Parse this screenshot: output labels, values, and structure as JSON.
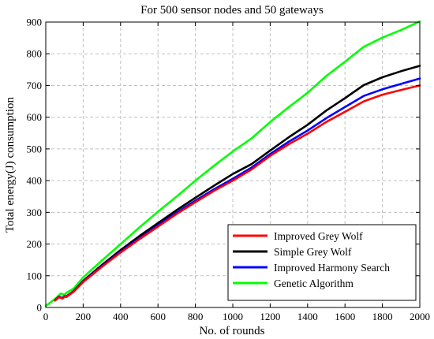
{
  "chart_data": {
    "type": "line",
    "title": "For 500 sensor nodes and 50 gateways",
    "xlabel": "No. of rounds",
    "ylabel": "Total energy(J) consumption",
    "xlim": [
      0,
      2000
    ],
    "ylim": [
      0,
      900
    ],
    "xticks": [
      0,
      200,
      400,
      600,
      800,
      1000,
      1200,
      1400,
      1600,
      1800,
      2000
    ],
    "yticks": [
      0,
      100,
      200,
      300,
      400,
      500,
      600,
      700,
      800,
      900
    ],
    "grid": true,
    "grid_style": "dashed",
    "legend_position": "bottom-right",
    "series": [
      {
        "name": "Improved Grey Wolf",
        "color": "#ff0000",
        "points": [
          [
            50,
            22
          ],
          [
            70,
            32
          ],
          [
            90,
            28
          ],
          [
            100,
            34
          ],
          [
            110,
            33
          ],
          [
            150,
            50
          ],
          [
            200,
            80
          ],
          [
            300,
            128
          ],
          [
            400,
            173
          ],
          [
            500,
            215
          ],
          [
            600,
            255
          ],
          [
            700,
            295
          ],
          [
            800,
            332
          ],
          [
            900,
            368
          ],
          [
            1000,
            400
          ],
          [
            1100,
            435
          ],
          [
            1200,
            478
          ],
          [
            1300,
            515
          ],
          [
            1400,
            548
          ],
          [
            1500,
            585
          ],
          [
            1600,
            617
          ],
          [
            1700,
            650
          ],
          [
            1800,
            671
          ],
          [
            1900,
            686
          ],
          [
            2000,
            700
          ]
        ]
      },
      {
        "name": "Simple Grey Wolf",
        "color": "#000000",
        "points": [
          [
            50,
            23
          ],
          [
            70,
            34
          ],
          [
            90,
            30
          ],
          [
            100,
            36
          ],
          [
            110,
            35
          ],
          [
            150,
            52
          ],
          [
            200,
            84
          ],
          [
            300,
            134
          ],
          [
            400,
            181
          ],
          [
            500,
            225
          ],
          [
            600,
            266
          ],
          [
            700,
            307
          ],
          [
            800,
            346
          ],
          [
            900,
            384
          ],
          [
            1000,
            421
          ],
          [
            1100,
            452
          ],
          [
            1200,
            495
          ],
          [
            1300,
            537
          ],
          [
            1400,
            576
          ],
          [
            1500,
            621
          ],
          [
            1600,
            660
          ],
          [
            1700,
            701
          ],
          [
            1800,
            726
          ],
          [
            1900,
            745
          ],
          [
            2000,
            762
          ]
        ]
      },
      {
        "name": "Improved Harmony Search",
        "color": "#0000ff",
        "points": [
          [
            50,
            22
          ],
          [
            70,
            33
          ],
          [
            90,
            29
          ],
          [
            100,
            35
          ],
          [
            110,
            34
          ],
          [
            150,
            51
          ],
          [
            200,
            82
          ],
          [
            300,
            130
          ],
          [
            400,
            176
          ],
          [
            500,
            218
          ],
          [
            600,
            259
          ],
          [
            700,
            299
          ],
          [
            800,
            337
          ],
          [
            900,
            373
          ],
          [
            1000,
            406
          ],
          [
            1100,
            441
          ],
          [
            1200,
            484
          ],
          [
            1300,
            523
          ],
          [
            1400,
            558
          ],
          [
            1500,
            597
          ],
          [
            1600,
            632
          ],
          [
            1700,
            667
          ],
          [
            1800,
            688
          ],
          [
            1900,
            705
          ],
          [
            2000,
            722
          ]
        ]
      },
      {
        "name": "Genetic Algorithm",
        "color": "#00ff00",
        "points": [
          [
            0,
            5
          ],
          [
            30,
            18
          ],
          [
            60,
            32
          ],
          [
            80,
            44
          ],
          [
            100,
            40
          ],
          [
            110,
            46
          ],
          [
            150,
            60
          ],
          [
            200,
            95
          ],
          [
            300,
            148
          ],
          [
            400,
            200
          ],
          [
            500,
            252
          ],
          [
            600,
            302
          ],
          [
            700,
            350
          ],
          [
            800,
            400
          ],
          [
            900,
            447
          ],
          [
            1000,
            492
          ],
          [
            1100,
            533
          ],
          [
            1200,
            585
          ],
          [
            1300,
            632
          ],
          [
            1400,
            677
          ],
          [
            1500,
            730
          ],
          [
            1600,
            775
          ],
          [
            1700,
            822
          ],
          [
            1800,
            851
          ],
          [
            1900,
            875
          ],
          [
            2000,
            902
          ]
        ]
      }
    ]
  }
}
